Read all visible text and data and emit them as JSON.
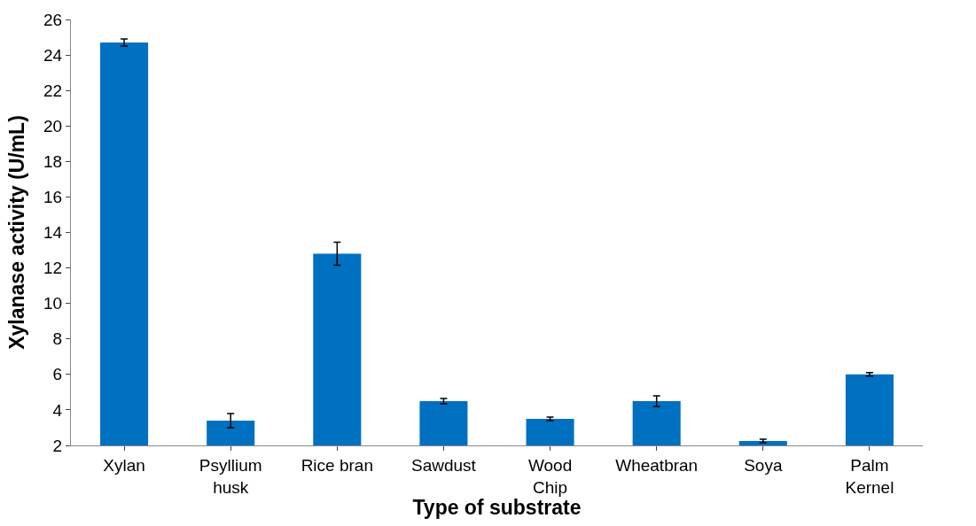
{
  "chart_data": {
    "type": "bar",
    "xlabel": "Type of substrate",
    "ylabel": "Xylanase activity (U/mL)",
    "categories": [
      "Xylan",
      "Psyllium\nhusk",
      "Rice bran",
      "Sawdust",
      "Wood\nChip",
      "Wheatbran",
      "Soya",
      "Palm\nKernel"
    ],
    "values": [
      24.7,
      3.4,
      12.8,
      4.5,
      3.5,
      4.5,
      2.25,
      6.0
    ],
    "errors": [
      0.2,
      0.4,
      0.65,
      0.15,
      0.1,
      0.3,
      0.1,
      0.1
    ],
    "color": "#0070c0",
    "ylim": [
      2,
      26
    ],
    "yticks": [
      2,
      4,
      6,
      8,
      10,
      12,
      14,
      16,
      18,
      20,
      22,
      24,
      26
    ]
  }
}
